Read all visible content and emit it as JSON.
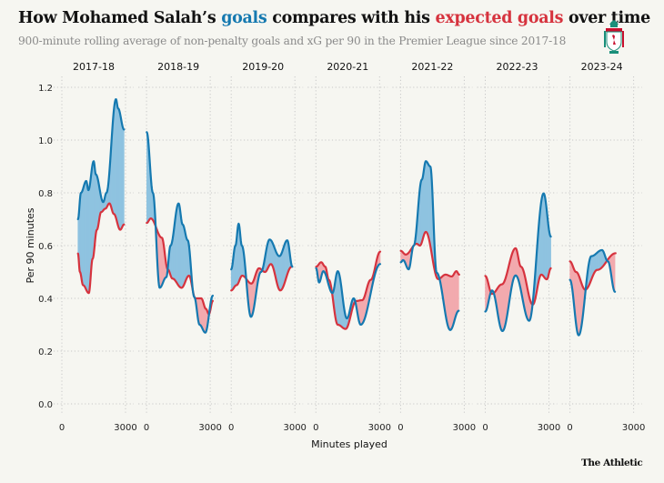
{
  "header": {
    "title_prefix": "How Mohamed Salah’s ",
    "title_goals": "goals",
    "title_middle": " compares with his ",
    "title_xg": "expected goals",
    "title_suffix": " over time",
    "subtitle": "900-minute rolling average of non-penalty goals and xG per 90 in the Premier League since 2017-18",
    "crest_icon": "liverpool-crest-icon"
  },
  "footer": {
    "brand": "The Athletic"
  },
  "colors": {
    "goals": "#1579b0",
    "xg": "#d6333e",
    "goals_fill": "#8fc3e0",
    "xg_fill": "#f2aaae",
    "grid": "#c8c8c8"
  },
  "chart_data": {
    "type": "line",
    "title": "How Mohamed Salah’s goals compares with his expected goals over time",
    "subtitle": "900-minute rolling average of non-penalty goals and xG per 90 in the Premier League since 2017-18",
    "xlabel": "Minutes played",
    "ylabel": "Per 90 minutes",
    "ylim": [
      0,
      1.2
    ],
    "yticks": [
      "0.0",
      "0.2",
      "0.4",
      "0.6",
      "0.8",
      "1.0",
      "1.2"
    ],
    "xlim": [
      0,
      3000
    ],
    "xticks": [
      "0",
      "3000"
    ],
    "grid": true,
    "fill_between": "blue where goals > xG, red where xG > goals",
    "panels": [
      {
        "season": "2017-18",
        "series": [
          {
            "name": "goals",
            "points": [
              [
                760,
                0.7
              ],
              [
                900,
                0.8
              ],
              [
                1150,
                0.845
              ],
              [
                1250,
                0.81
              ],
              [
                1500,
                0.92
              ],
              [
                1600,
                0.87
              ],
              [
                1950,
                0.765
              ],
              [
                2100,
                0.8
              ],
              [
                2550,
                1.155
              ],
              [
                2650,
                1.12
              ],
              [
                2930,
                1.04
              ]
            ]
          },
          {
            "name": "xG",
            "points": [
              [
                760,
                0.57
              ],
              [
                850,
                0.5
              ],
              [
                1000,
                0.45
              ],
              [
                1270,
                0.42
              ],
              [
                1450,
                0.55
              ],
              [
                1650,
                0.66
              ],
              [
                1850,
                0.727
              ],
              [
                2050,
                0.74
              ],
              [
                2240,
                0.76
              ],
              [
                2450,
                0.72
              ],
              [
                2750,
                0.66
              ],
              [
                2930,
                0.68
              ]
            ]
          }
        ]
      },
      {
        "season": "2018-19",
        "series": [
          {
            "name": "goals",
            "points": [
              [
                10,
                1.03
              ],
              [
                300,
                0.8
              ],
              [
                620,
                0.44
              ],
              [
                930,
                0.48
              ],
              [
                1130,
                0.6
              ],
              [
                1510,
                0.76
              ],
              [
                1700,
                0.68
              ],
              [
                1940,
                0.62
              ],
              [
                2250,
                0.405
              ],
              [
                2500,
                0.3
              ],
              [
                2770,
                0.27
              ],
              [
                3120,
                0.41
              ]
            ]
          },
          {
            "name": "xG",
            "points": [
              [
                10,
                0.686
              ],
              [
                200,
                0.703
              ],
              [
                720,
                0.63
              ],
              [
                1000,
                0.51
              ],
              [
                1220,
                0.475
              ],
              [
                1650,
                0.44
              ],
              [
                2000,
                0.486
              ],
              [
                2300,
                0.4
              ],
              [
                2580,
                0.4
              ],
              [
                2800,
                0.36
              ],
              [
                2940,
                0.34
              ],
              [
                3120,
                0.39
              ]
            ]
          }
        ]
      },
      {
        "season": "2019-20",
        "series": [
          {
            "name": "goals",
            "points": [
              [
                0,
                0.51
              ],
              [
                200,
                0.6
              ],
              [
                350,
                0.683
              ],
              [
                500,
                0.6
              ],
              [
                930,
                0.33
              ],
              [
                1400,
                0.5
              ],
              [
                1810,
                0.623
              ],
              [
                2270,
                0.56
              ],
              [
                2640,
                0.62
              ],
              [
                2880,
                0.52
              ]
            ]
          },
          {
            "name": "xG",
            "points": [
              [
                0,
                0.43
              ],
              [
                250,
                0.45
              ],
              [
                520,
                0.486
              ],
              [
                950,
                0.456
              ],
              [
                1310,
                0.514
              ],
              [
                1590,
                0.5
              ],
              [
                1870,
                0.53
              ],
              [
                2310,
                0.43
              ],
              [
                2850,
                0.52
              ]
            ]
          }
        ]
      },
      {
        "season": "2020-21",
        "series": [
          {
            "name": "goals",
            "points": [
              [
                10,
                0.514
              ],
              [
                150,
                0.46
              ],
              [
                350,
                0.503
              ],
              [
                780,
                0.42
              ],
              [
                1030,
                0.503
              ],
              [
                1460,
                0.324
              ],
              [
                1780,
                0.4
              ],
              [
                2110,
                0.3
              ],
              [
                3030,
                0.53
              ]
            ]
          },
          {
            "name": "xG",
            "points": [
              [
                10,
                0.52
              ],
              [
                250,
                0.537
              ],
              [
                440,
                0.52
              ],
              [
                610,
                0.47
              ],
              [
                1030,
                0.3
              ],
              [
                1400,
                0.284
              ],
              [
                1890,
                0.39
              ],
              [
                2180,
                0.393
              ],
              [
                2580,
                0.47
              ],
              [
                3030,
                0.577
              ]
            ]
          }
        ]
      },
      {
        "season": "2021-22",
        "series": [
          {
            "name": "goals",
            "points": [
              [
                10,
                0.537
              ],
              [
                120,
                0.545
              ],
              [
                380,
                0.51
              ],
              [
                620,
                0.6
              ],
              [
                1000,
                0.85
              ],
              [
                1190,
                0.92
              ],
              [
                1400,
                0.9
              ],
              [
                1700,
                0.497
              ],
              [
                2340,
                0.28
              ],
              [
                2740,
                0.353
              ]
            ]
          },
          {
            "name": "xG",
            "points": [
              [
                10,
                0.58
              ],
              [
                240,
                0.566
              ],
              [
                760,
                0.607
              ],
              [
                910,
                0.6
              ],
              [
                1190,
                0.652
              ],
              [
                1770,
                0.473
              ],
              [
                2120,
                0.49
              ],
              [
                2410,
                0.483
              ],
              [
                2630,
                0.503
              ],
              [
                2760,
                0.49
              ]
            ]
          }
        ]
      },
      {
        "season": "2022-23",
        "series": [
          {
            "name": "goals",
            "points": [
              [
                0,
                0.35
              ],
              [
                320,
                0.43
              ],
              [
                810,
                0.276
              ],
              [
                1430,
                0.487
              ],
              [
                2070,
                0.315
              ],
              [
                2750,
                0.798
              ],
              [
                3090,
                0.634
              ]
            ]
          },
          {
            "name": "xG",
            "points": [
              [
                0,
                0.485
              ],
              [
                320,
                0.417
              ],
              [
                780,
                0.453
              ],
              [
                1430,
                0.59
              ],
              [
                1680,
                0.52
              ],
              [
                2240,
                0.376
              ],
              [
                2640,
                0.49
              ],
              [
                2900,
                0.472
              ],
              [
                3090,
                0.514
              ]
            ]
          }
        ]
      },
      {
        "season": "2023-24",
        "series": [
          {
            "name": "goals",
            "points": [
              [
                0,
                0.47
              ],
              [
                410,
                0.26
              ],
              [
                1010,
                0.56
              ],
              [
                1510,
                0.583
              ],
              [
                1790,
                0.54
              ],
              [
                2120,
                0.425
              ]
            ]
          },
          {
            "name": "xG",
            "points": [
              [
                0,
                0.54
              ],
              [
                290,
                0.5
              ],
              [
                720,
                0.433
              ],
              [
                1290,
                0.508
              ],
              [
                2150,
                0.571
              ]
            ]
          }
        ]
      }
    ]
  }
}
